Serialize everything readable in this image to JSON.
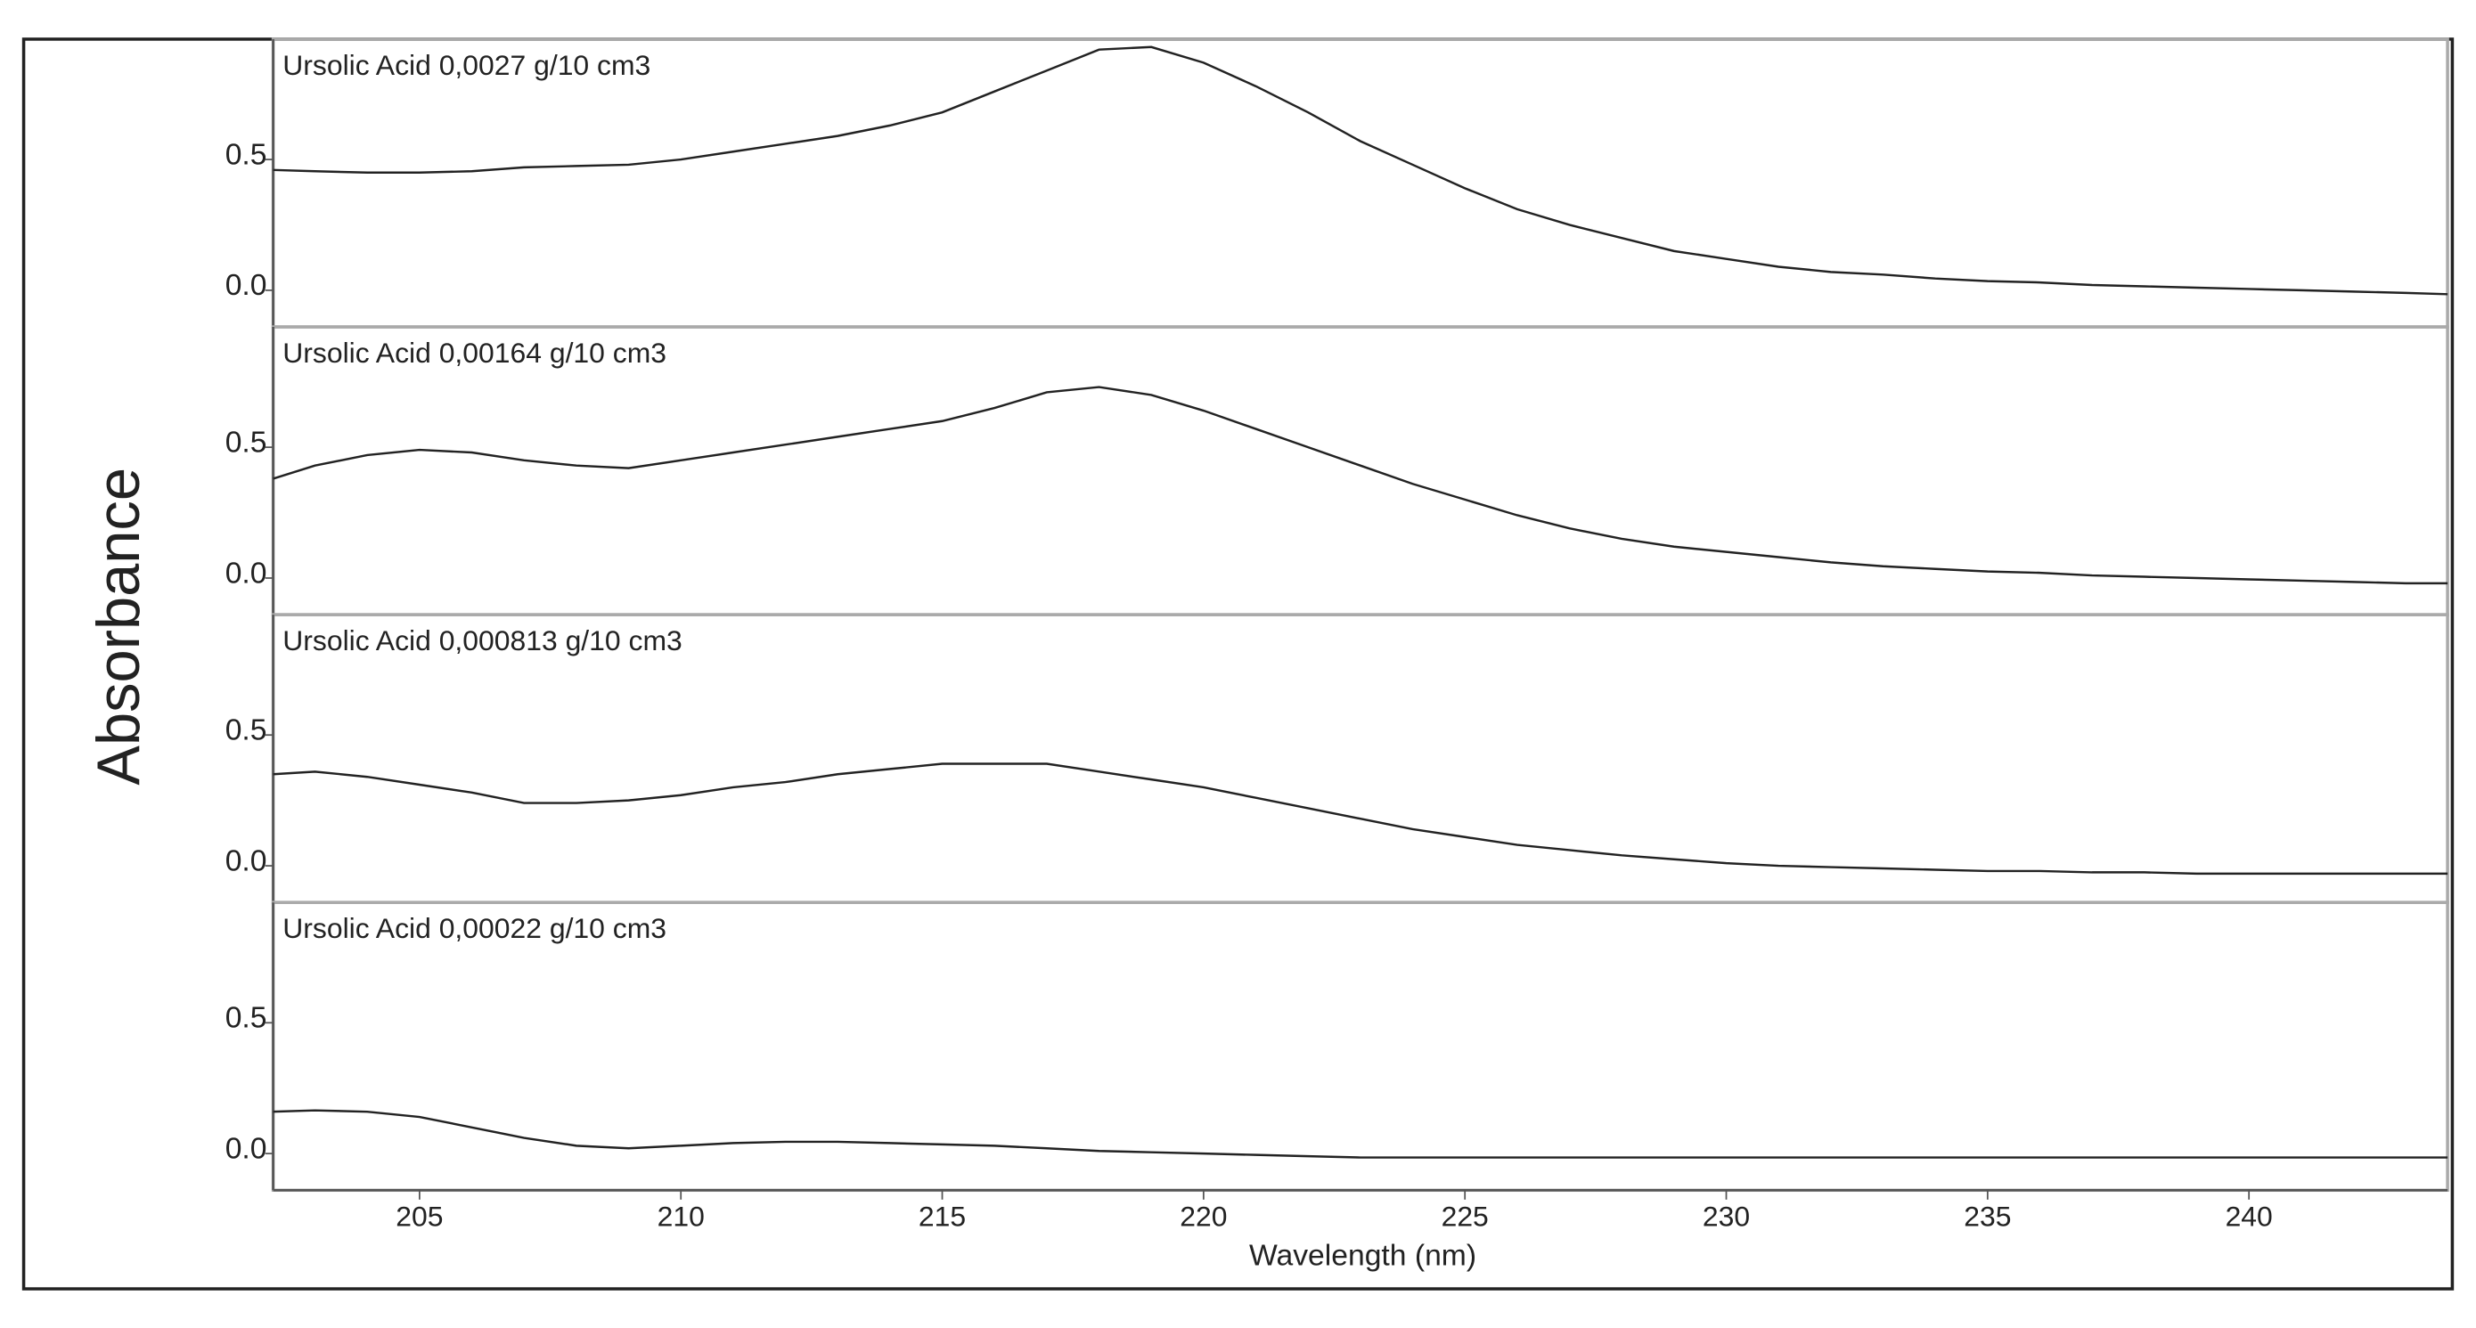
{
  "chart_data": [
    {
      "type": "line",
      "title": "Ursolic Acid  0,0027 g/10 cm3",
      "y_label": "Absorbance",
      "color": "#222222",
      "x": [
        202.2,
        203,
        204,
        205,
        206,
        207,
        208,
        209,
        210,
        211,
        212,
        213,
        214,
        215,
        216,
        217,
        218,
        219,
        220,
        221,
        222,
        223,
        224,
        225,
        226,
        227,
        228,
        229,
        230,
        231,
        232,
        233,
        234,
        235,
        236,
        237,
        238,
        239,
        240,
        241,
        242,
        243,
        243.8
      ],
      "values": [
        0.46,
        0.455,
        0.45,
        0.45,
        0.455,
        0.47,
        0.475,
        0.48,
        0.5,
        0.53,
        0.56,
        0.59,
        0.63,
        0.68,
        0.76,
        0.84,
        0.92,
        0.93,
        0.87,
        0.78,
        0.68,
        0.57,
        0.48,
        0.39,
        0.31,
        0.25,
        0.2,
        0.15,
        0.12,
        0.09,
        0.07,
        0.06,
        0.045,
        0.035,
        0.03,
        0.02,
        0.015,
        0.01,
        0.005,
        0,
        -0.005,
        -0.01,
        -0.015
      ],
      "xlim": [
        202.2,
        243.8
      ],
      "ylim": [
        -0.14,
        0.96
      ],
      "yticks": [
        {
          "value": 0,
          "label": "0.0"
        },
        0.5
      ]
    },
    {
      "type": "line",
      "title": "Ursolic Acid 0,00164 g/10 cm3",
      "color": "#222222",
      "x": [
        202.2,
        203,
        204,
        205,
        206,
        207,
        208,
        209,
        210,
        211,
        212,
        213,
        214,
        215,
        216,
        217,
        218,
        219,
        220,
        221,
        222,
        223,
        224,
        225,
        226,
        227,
        228,
        229,
        230,
        231,
        232,
        233,
        234,
        235,
        236,
        237,
        238,
        239,
        240,
        241,
        242,
        243,
        243.8
      ],
      "values": [
        0.38,
        0.43,
        0.47,
        0.49,
        0.48,
        0.45,
        0.43,
        0.42,
        0.45,
        0.48,
        0.51,
        0.54,
        0.57,
        0.6,
        0.65,
        0.71,
        0.73,
        0.7,
        0.64,
        0.57,
        0.5,
        0.43,
        0.36,
        0.3,
        0.24,
        0.19,
        0.15,
        0.12,
        0.1,
        0.08,
        0.06,
        0.045,
        0.035,
        0.025,
        0.02,
        0.01,
        0.005,
        0,
        -0.005,
        -0.01,
        -0.015,
        -0.02,
        -0.02
      ],
      "xlim": [
        202.2,
        243.8
      ],
      "ylim": [
        -0.14,
        0.96
      ],
      "yticks": [
        {
          "value": 0,
          "label": "0.0"
        },
        0.5
      ]
    },
    {
      "type": "line",
      "title": "Ursolic Acid  0,000813 g/10 cm3",
      "color": "#222222",
      "x": [
        202.2,
        203,
        204,
        205,
        206,
        207,
        208,
        209,
        210,
        211,
        212,
        213,
        214,
        215,
        216,
        217,
        218,
        219,
        220,
        221,
        222,
        223,
        224,
        225,
        226,
        227,
        228,
        229,
        230,
        231,
        232,
        233,
        234,
        235,
        236,
        237,
        238,
        239,
        240,
        241,
        242,
        243,
        243.8
      ],
      "values": [
        0.35,
        0.36,
        0.34,
        0.31,
        0.28,
        0.24,
        0.24,
        0.25,
        0.27,
        0.3,
        0.32,
        0.35,
        0.37,
        0.39,
        0.39,
        0.39,
        0.36,
        0.33,
        0.3,
        0.26,
        0.22,
        0.18,
        0.14,
        0.11,
        0.08,
        0.06,
        0.04,
        0.025,
        0.01,
        0,
        -0.005,
        -0.01,
        -0.015,
        -0.02,
        -0.02,
        -0.025,
        -0.025,
        -0.03,
        -0.03,
        -0.03,
        -0.03,
        -0.03,
        -0.03
      ],
      "xlim": [
        202.2,
        243.8
      ],
      "ylim": [
        -0.14,
        0.96
      ],
      "yticks": [
        {
          "value": 0,
          "label": "0.0"
        },
        0.5
      ]
    },
    {
      "type": "line",
      "title": "Ursolic Acid 0,00022 g/10 cm3",
      "x_label": "Wavelength (nm)",
      "color": "#222222",
      "x": [
        202.2,
        203,
        204,
        205,
        206,
        207,
        208,
        209,
        210,
        211,
        212,
        213,
        214,
        215,
        216,
        217,
        218,
        219,
        220,
        221,
        222,
        223,
        224,
        225,
        226,
        227,
        228,
        229,
        230,
        231,
        232,
        233,
        234,
        235,
        236,
        237,
        238,
        239,
        240,
        241,
        242,
        243,
        243.8
      ],
      "values": [
        0.16,
        0.165,
        0.16,
        0.14,
        0.1,
        0.06,
        0.03,
        0.02,
        0.03,
        0.04,
        0.045,
        0.045,
        0.04,
        0.035,
        0.03,
        0.02,
        0.01,
        0.005,
        0,
        -0.005,
        -0.01,
        -0.015,
        -0.015,
        -0.015,
        -0.015,
        -0.015,
        -0.015,
        -0.015,
        -0.015,
        -0.015,
        -0.015,
        -0.015,
        -0.015,
        -0.015,
        -0.015,
        -0.015,
        -0.015,
        -0.015,
        -0.015,
        -0.015,
        -0.015,
        -0.015,
        -0.015
      ],
      "xlim": [
        202.2,
        243.8
      ],
      "ylim": [
        -0.14,
        0.96
      ],
      "yticks": [
        {
          "value": 0,
          "label": "0.0"
        },
        0.5
      ],
      "xticks": [
        205,
        210,
        215,
        220,
        225,
        230,
        235,
        240
      ]
    }
  ]
}
